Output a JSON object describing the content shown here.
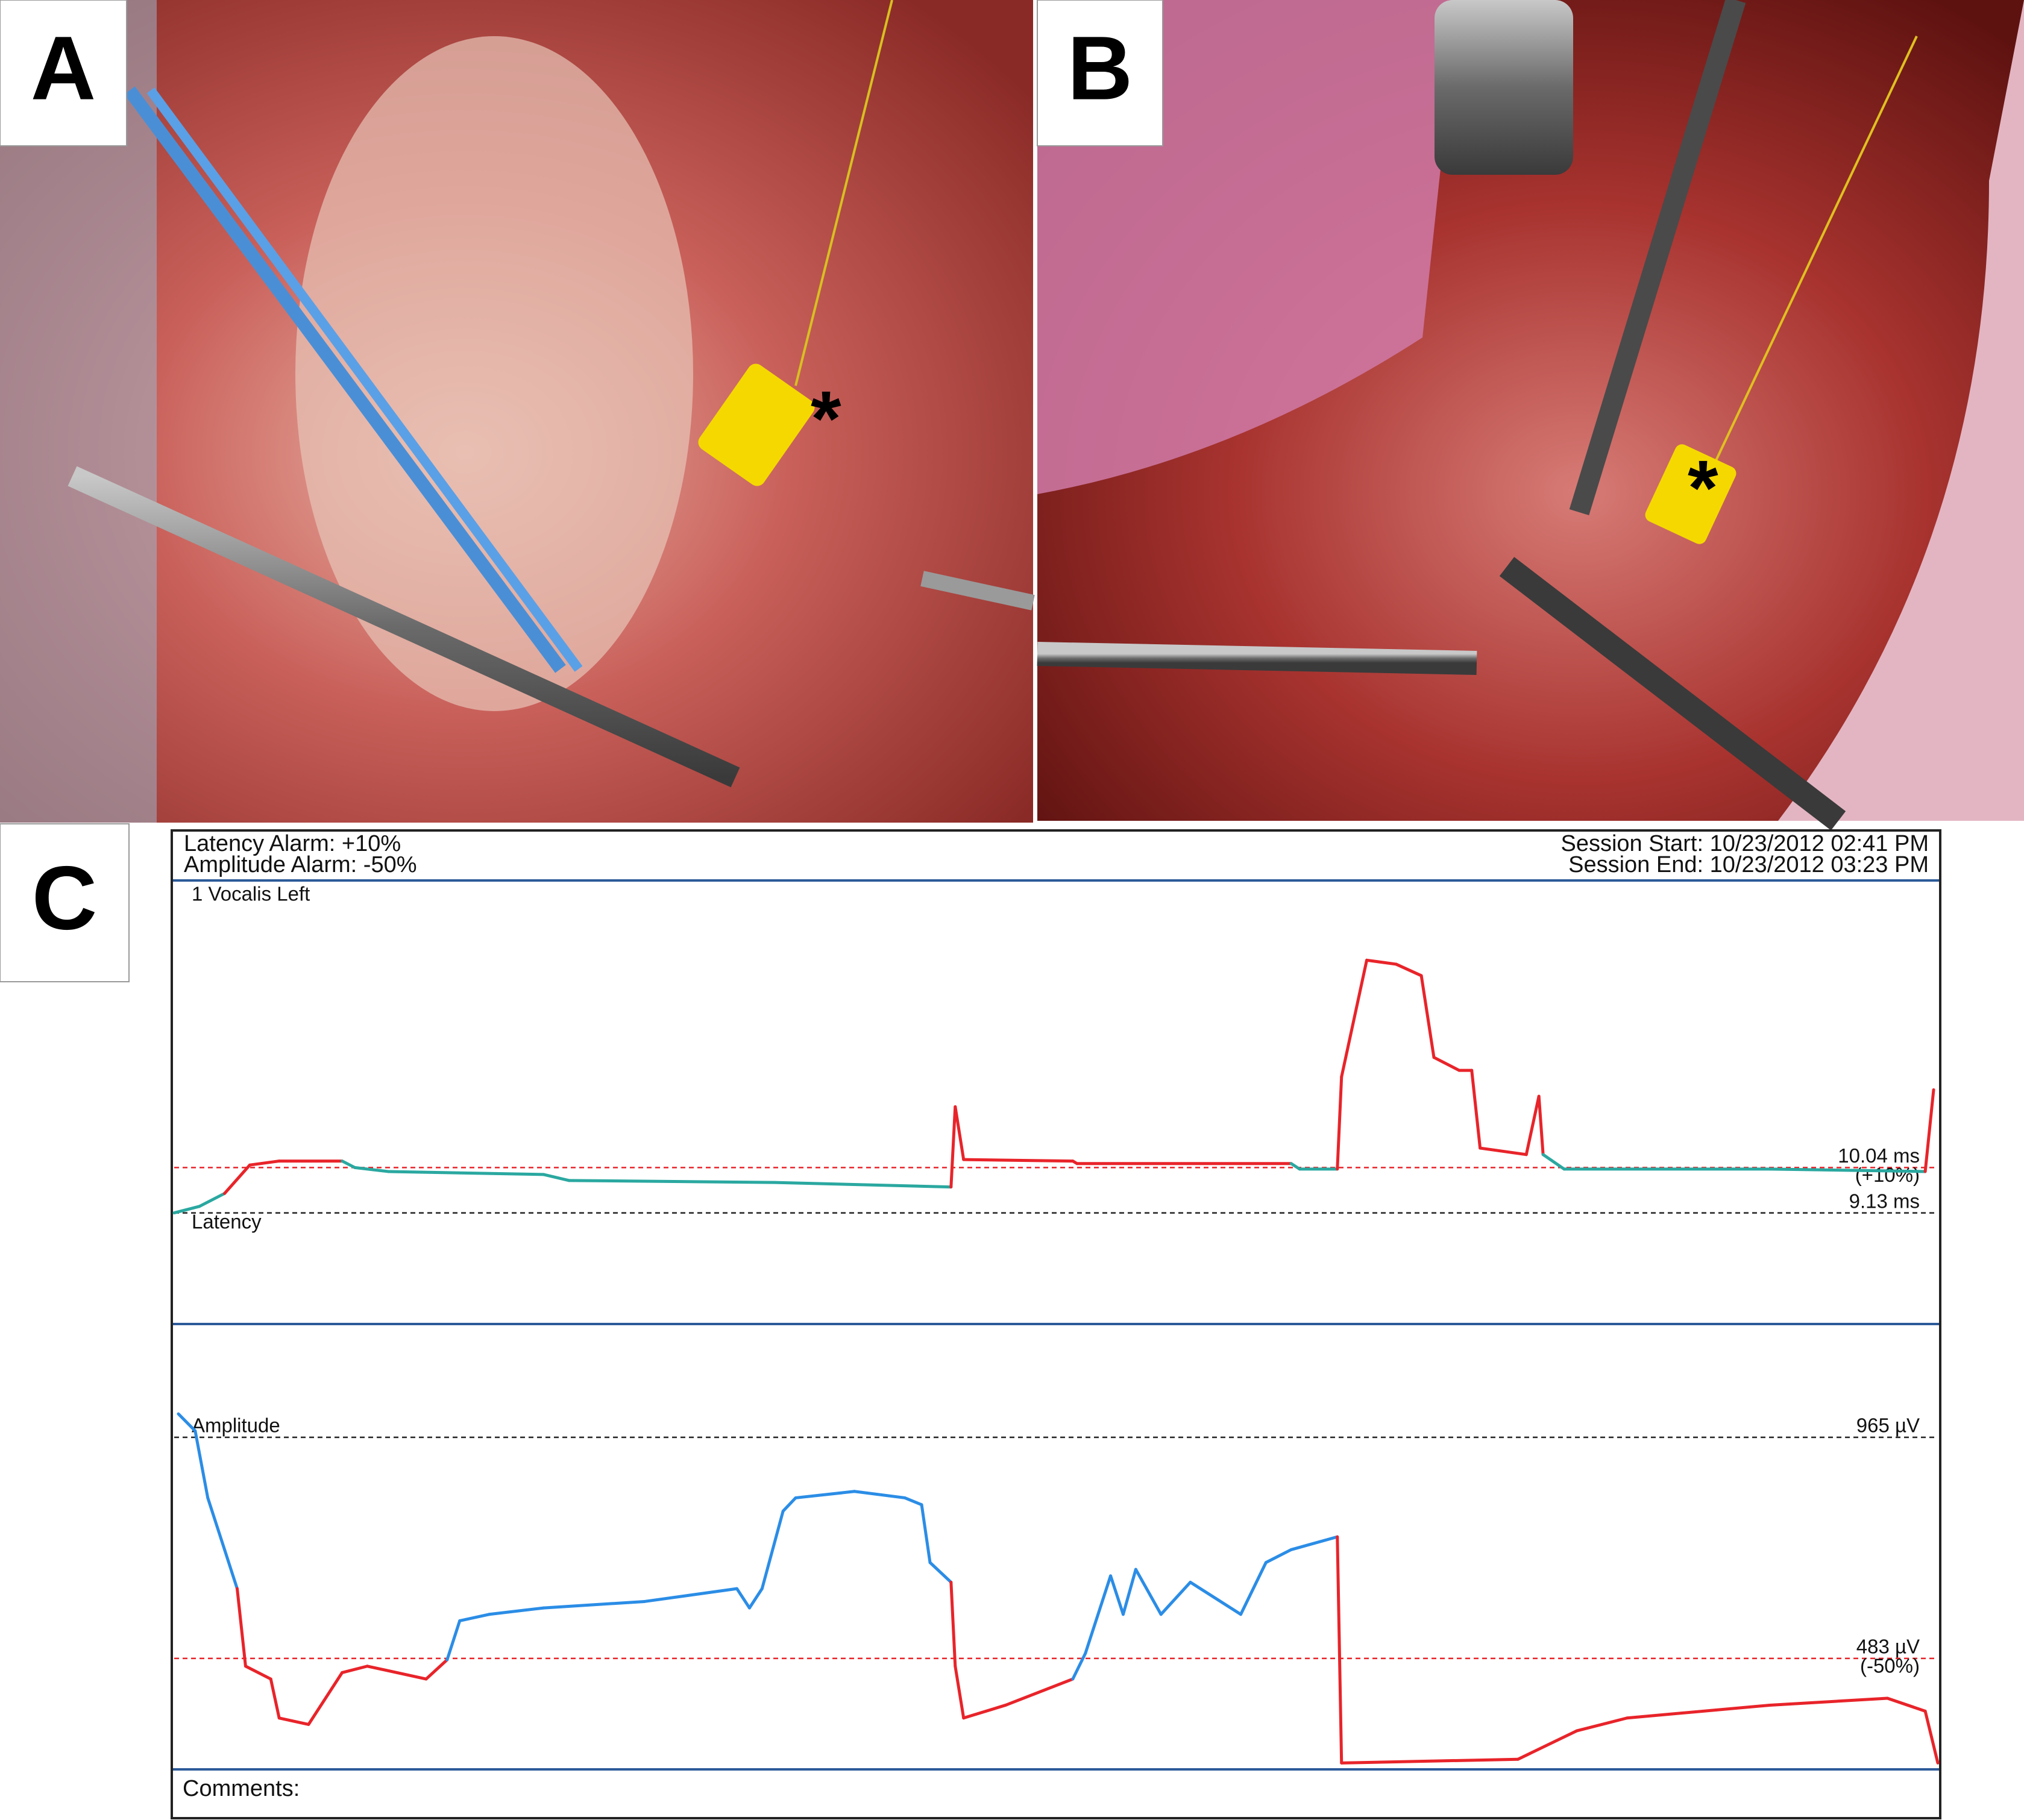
{
  "panels": [
    {
      "label": "A",
      "marker": "*"
    },
    {
      "label": "B",
      "marker": "*"
    },
    {
      "label": "C"
    }
  ],
  "monitor": {
    "latency_alarm": "Latency Alarm: +10%",
    "amplitude_alarm": "Amplitude Alarm: -50%",
    "session_start": "Session Start: 10/23/2012 02:41 PM",
    "session_end": "Session End: 10/23/2012 03:23 PM",
    "channel": "1  Vocalis Left",
    "comments": "Comments:"
  },
  "chart_data": [
    {
      "type": "line",
      "title": "Latency",
      "xlim": [
        0,
        42
      ],
      "ylim": [
        6.9,
        15.8
      ],
      "reference_lines": [
        {
          "value": 10.04,
          "label": "10.04 ms",
          "sublabel": "(+10%)",
          "color": "#e8242a"
        },
        {
          "value": 9.13,
          "label": "9.13 ms",
          "color": "#222222"
        }
      ],
      "series": [
        {
          "color": "#2aa8a0",
          "alarm_color": "#e8242a",
          "alarm": "above",
          "x": [
            0,
            0.6,
            1.2,
            1.8,
            2.5,
            4.0,
            4.3,
            5.1,
            8.8,
            9.4,
            14.3,
            18.5,
            18.6,
            18.8,
            21.4,
            21.5,
            26.6,
            26.8,
            27.7,
            27.8,
            28.4,
            29.1,
            29.7,
            30.0,
            30.6,
            30.9,
            31.1,
            32.2,
            32.5,
            32.6,
            33.1,
            38.0,
            41.7,
            41.9
          ],
          "values": [
            9.13,
            9.26,
            9.52,
            10.09,
            10.17,
            10.17,
            10.04,
            9.96,
            9.9,
            9.78,
            9.74,
            9.65,
            11.26,
            10.2,
            10.17,
            10.12,
            10.12,
            10.01,
            10.01,
            11.86,
            14.2,
            14.12,
            13.89,
            12.25,
            11.99,
            11.99,
            10.43,
            10.3,
            11.47,
            10.3,
            10.01,
            10.01,
            9.96,
            11.6
          ]
        }
      ]
    },
    {
      "type": "line",
      "title": "Amplitude",
      "xlim": [
        0,
        42
      ],
      "ylim": [
        241,
        1212
      ],
      "reference_lines": [
        {
          "value": 965,
          "label": "965 µV",
          "color": "#222222"
        },
        {
          "value": 483,
          "label": "483 µV",
          "sublabel": "(-50%)",
          "color": "#e8242a"
        }
      ],
      "series": [
        {
          "color": "#2b8de6",
          "alarm_color": "#e8242a",
          "alarm": "below",
          "x": [
            0.1,
            0.5,
            0.8,
            1.2,
            1.5,
            1.7,
            2.3,
            2.5,
            3.2,
            4.0,
            4.6,
            6.0,
            6.5,
            6.8,
            7.5,
            8.8,
            11.2,
            13.4,
            13.7,
            14.0,
            14.5,
            14.8,
            16.2,
            17.4,
            17.8,
            18.0,
            18.5,
            18.6,
            18.8,
            19.8,
            21.4,
            21.7,
            22.3,
            22.6,
            22.9,
            23.5,
            24.2,
            25.4,
            26.0,
            26.6,
            27.7,
            27.8,
            32.0,
            33.4,
            34.6,
            38.0,
            40.8,
            41.7,
            42.0
          ],
          "values": [
            1016,
            979,
            833,
            720,
            635,
            466,
            438,
            353,
            339,
            452,
            466,
            438,
            480,
            565,
            579,
            593,
            607,
            635,
            593,
            635,
            804,
            833,
            847,
            833,
            818,
            692,
            649,
            466,
            353,
            381,
            438,
            494,
            663,
            579,
            677,
            579,
            649,
            579,
            692,
            720,
            748,
            255,
            263,
            325,
            353,
            381,
            396,
            368,
            255
          ]
        }
      ]
    }
  ]
}
